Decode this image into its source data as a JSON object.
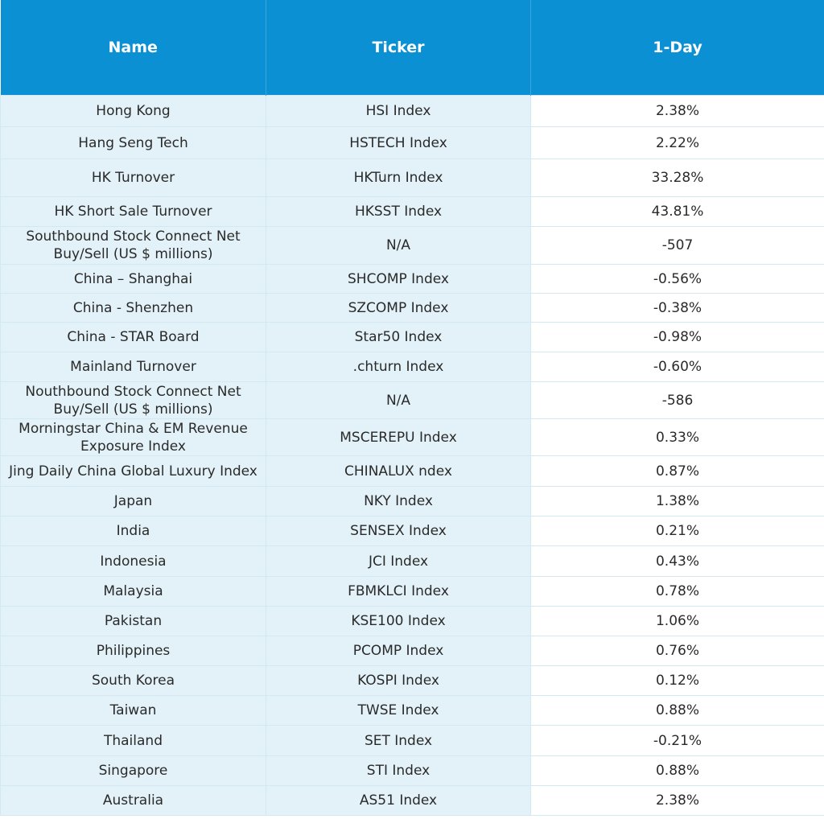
{
  "table": {
    "header": [
      "Name",
      "Ticker",
      "1-Day"
    ],
    "rows": [
      [
        "Hong Kong",
        "HSI Index",
        "2.38%"
      ],
      [
        "Hang Seng Tech",
        "HSTECH Index",
        "2.22%"
      ],
      [
        "HK Turnover",
        "HKTurn Index",
        "33.28%"
      ],
      [
        "HK Short Sale Turnover",
        "HKSST Index",
        "43.81%"
      ],
      [
        "Southbound Stock Connect Net Buy/Sell (US $ millions)",
        "N/A",
        "-507"
      ],
      [
        "China – Shanghai",
        "SHCOMP Index",
        "-0.56%"
      ],
      [
        "China - Shenzhen",
        "SZCOMP Index",
        "-0.38%"
      ],
      [
        "China - STAR Board",
        "Star50 Index",
        "-0.98%"
      ],
      [
        "Mainland Turnover",
        ".chturn Index",
        "-0.60%"
      ],
      [
        "Nouthbound Stock Connect Net Buy/Sell (US $ millions)",
        "N/A",
        "-586"
      ],
      [
        "Morningstar China & EM Revenue Exposure Index",
        "MSCEREPU Index",
        "0.33%"
      ],
      [
        "Jing Daily China Global Luxury Index",
        "CHINALUX ndex",
        "0.87%"
      ],
      [
        "Japan",
        "NKY Index",
        "1.38%"
      ],
      [
        "India",
        "SENSEX Index",
        "0.21%"
      ],
      [
        "Indonesia",
        "JCI Index",
        "0.43%"
      ],
      [
        "Malaysia",
        "FBMKLCI Index",
        "0.78%"
      ],
      [
        "Pakistan",
        "KSE100 Index",
        "1.06%"
      ],
      [
        "Philippines",
        "PCOMP Index",
        "0.76%"
      ],
      [
        "South Korea",
        "KOSPI Index",
        "0.12%"
      ],
      [
        "Taiwan",
        "TWSE Index",
        "0.88%"
      ],
      [
        "Thailand",
        "SET Index",
        "-0.21%"
      ],
      [
        "Singapore",
        "STI Index",
        "0.88%"
      ],
      [
        "Australia",
        "AS51 Index",
        "2.38%"
      ]
    ]
  }
}
